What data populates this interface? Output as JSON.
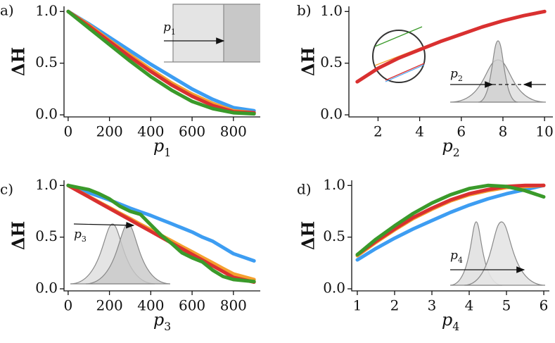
{
  "chart_data": [
    {
      "type": "line",
      "panel_label": "a)",
      "ylabel": "ΔH",
      "xlabel": "p",
      "xlabel_sub": "1",
      "inset_label": "p",
      "inset_label_sub": "1",
      "x": [
        0,
        100,
        200,
        300,
        400,
        500,
        600,
        700,
        800,
        900
      ],
      "series": [
        {
          "name": "blue",
          "color": "#3d9df2",
          "values": [
            1,
            0.88,
            0.75,
            0.62,
            0.49,
            0.37,
            0.25,
            0.15,
            0.07,
            0.04
          ]
        },
        {
          "name": "orange",
          "color": "#f5a02e",
          "values": [
            1,
            0.87,
            0.72,
            0.58,
            0.44,
            0.31,
            0.2,
            0.11,
            0.04,
            0.02
          ]
        },
        {
          "name": "red",
          "color": "#d93030",
          "values": [
            1,
            0.86,
            0.71,
            0.56,
            0.42,
            0.29,
            0.18,
            0.09,
            0.03,
            0.02
          ]
        },
        {
          "name": "green",
          "color": "#3a9a2a",
          "values": [
            1,
            0.84,
            0.68,
            0.52,
            0.37,
            0.24,
            0.13,
            0.06,
            0.02,
            0.01
          ]
        }
      ],
      "xlim": [
        -20,
        930
      ],
      "xticks": [
        0,
        200,
        400,
        600,
        800
      ],
      "ylim": [
        -0.02,
        1.05
      ],
      "yticks": [
        {
          "value": 0,
          "label": "0.0"
        },
        {
          "value": 0.5,
          "label": "0.5"
        },
        {
          "value": 1,
          "label": "1.0"
        }
      ]
    },
    {
      "type": "line",
      "panel_label": "b)",
      "ylabel": "ΔH",
      "xlabel": "p",
      "xlabel_sub": "2",
      "inset_label": "p",
      "inset_label_sub": "2",
      "x": [
        1,
        2,
        3,
        4,
        5,
        6,
        7,
        8,
        9,
        10
      ],
      "series": [
        {
          "name": "red",
          "color": "#d93030",
          "values": [
            0.32,
            0.45,
            0.55,
            0.63,
            0.71,
            0.78,
            0.85,
            0.91,
            0.96,
            1.0
          ]
        }
      ],
      "xlim": [
        0.6,
        10.4
      ],
      "xticks": [
        2,
        4,
        6,
        8,
        10
      ],
      "ylim": [
        -0.02,
        1.05
      ],
      "yticks": [
        {
          "value": 0,
          "label": "0.0"
        },
        {
          "value": 0.5,
          "label": "0.5"
        },
        {
          "value": 1,
          "label": "1.0"
        }
      ]
    },
    {
      "type": "line",
      "panel_label": "c)",
      "ylabel": "ΔH",
      "xlabel": "p",
      "xlabel_sub": "3",
      "inset_label": "p",
      "inset_label_sub": "3",
      "x": [
        0,
        50,
        100,
        150,
        200,
        250,
        300,
        350,
        400,
        450,
        500,
        550,
        600,
        650,
        700,
        750,
        800,
        900
      ],
      "series": [
        {
          "name": "blue",
          "color": "#3d9df2",
          "values": [
            1,
            0.965,
            0.93,
            0.895,
            0.86,
            0.82,
            0.78,
            0.745,
            0.71,
            0.67,
            0.63,
            0.59,
            0.55,
            0.5,
            0.46,
            0.4,
            0.34,
            0.27
          ]
        },
        {
          "name": "orange",
          "color": "#f5a02e",
          "values": [
            1,
            0.946,
            0.893,
            0.839,
            0.786,
            0.732,
            0.679,
            0.625,
            0.572,
            0.518,
            0.465,
            0.411,
            0.358,
            0.304,
            0.251,
            0.197,
            0.144,
            0.09
          ]
        },
        {
          "name": "red",
          "color": "#d93030",
          "values": [
            1,
            0.944,
            0.889,
            0.833,
            0.778,
            0.722,
            0.667,
            0.611,
            0.556,
            0.5,
            0.444,
            0.389,
            0.333,
            0.278,
            0.222,
            0.167,
            0.111,
            0.065
          ]
        },
        {
          "name": "green",
          "color": "#3a9a2a",
          "values": [
            1,
            0.98,
            0.96,
            0.92,
            0.87,
            0.8,
            0.75,
            0.72,
            0.62,
            0.52,
            0.44,
            0.35,
            0.3,
            0.26,
            0.18,
            0.12,
            0.09,
            0.07
          ]
        }
      ],
      "xlim": [
        -20,
        930
      ],
      "xticks": [
        0,
        200,
        400,
        600,
        800
      ],
      "ylim": [
        -0.02,
        1.05
      ],
      "yticks": [
        {
          "value": 0,
          "label": "0.0"
        },
        {
          "value": 0.5,
          "label": "0.5"
        },
        {
          "value": 1,
          "label": "1.0"
        }
      ]
    },
    {
      "type": "line",
      "panel_label": "d)",
      "ylabel": "ΔH",
      "xlabel": "p",
      "xlabel_sub": "4",
      "inset_label": "p",
      "inset_label_sub": "4",
      "x": [
        1,
        1.5,
        2,
        2.5,
        3,
        3.5,
        4,
        4.5,
        5,
        5.5,
        6
      ],
      "series": [
        {
          "name": "blue",
          "color": "#3d9df2",
          "values": [
            0.28,
            0.39,
            0.49,
            0.58,
            0.66,
            0.74,
            0.81,
            0.87,
            0.92,
            0.96,
            1.0
          ]
        },
        {
          "name": "orange",
          "color": "#f5a02e",
          "values": [
            0.32,
            0.45,
            0.57,
            0.68,
            0.77,
            0.85,
            0.91,
            0.95,
            0.98,
            0.99,
            1.0
          ]
        },
        {
          "name": "red",
          "color": "#d93030",
          "values": [
            0.33,
            0.46,
            0.58,
            0.69,
            0.78,
            0.86,
            0.92,
            0.96,
            0.99,
            1.0,
            1.0
          ]
        },
        {
          "name": "green",
          "color": "#3a9a2a",
          "values": [
            0.33,
            0.48,
            0.61,
            0.73,
            0.83,
            0.91,
            0.97,
            1.0,
            0.99,
            0.95,
            0.89
          ]
        }
      ],
      "xlim": [
        0.85,
        6.15
      ],
      "xticks": [
        1,
        2,
        3,
        4,
        5,
        6
      ],
      "ylim": [
        -0.02,
        1.05
      ],
      "yticks": [
        {
          "value": 0,
          "label": "0.0"
        },
        {
          "value": 0.5,
          "label": "0.5"
        },
        {
          "value": 1,
          "label": "1.0"
        }
      ]
    }
  ]
}
